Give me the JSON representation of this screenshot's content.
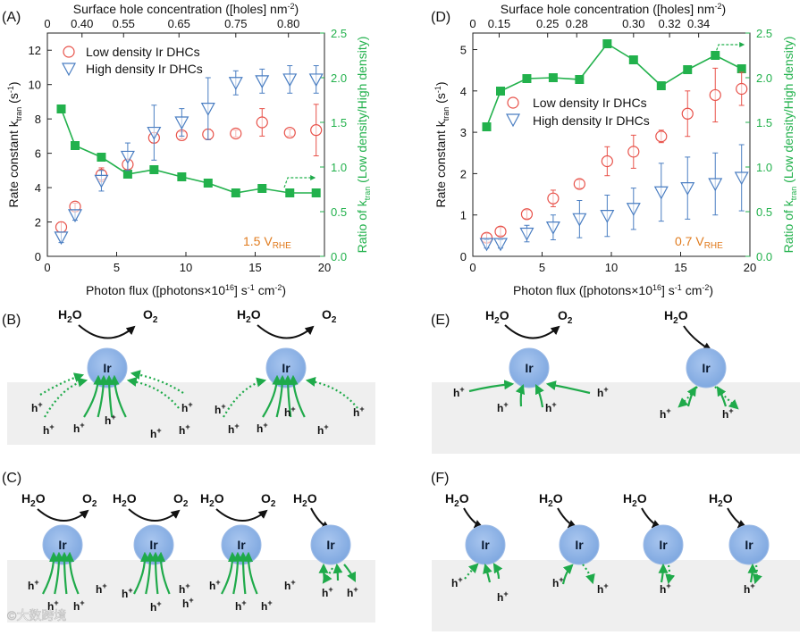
{
  "panels": {
    "A": {
      "letter": "(A)",
      "condition": "1.5 V",
      "condition_sub": "RHE"
    },
    "B": {
      "letter": "(B)"
    },
    "C": {
      "letter": "(C)"
    },
    "D": {
      "letter": "(D)",
      "condition": "0.7 V",
      "condition_sub": "RHE"
    },
    "E": {
      "letter": "(E)"
    },
    "F": {
      "letter": "(F)"
    }
  },
  "axes": {
    "x_title_pre": "Photon flux ([photons×10",
    "x_title_sup": "16",
    "x_title_mid": "] s",
    "x_title_sup2": "-1",
    "x_title_mid2": " cm",
    "x_title_sup3": "-2",
    "x_title_post": ")",
    "top_title_pre": "Surface hole concentration ([holes] nm",
    "top_title_sup": "-2",
    "top_title_post": ")",
    "y_title_pre": "Rate constant k",
    "y_title_sub": "tran",
    "y_title_post": " (s",
    "y_title_sup": "-1",
    "y_title_end": ")",
    "y2_title_pre": "Ratio of k",
    "y2_title_sub": "tran",
    "y2_title_post": " (Low density/High density)"
  },
  "legend": {
    "low": "Low density Ir DHCs",
    "high": "High density Ir DHCs"
  },
  "colors": {
    "low": "#e8524a",
    "high": "#4a7ec2",
    "ratio": "#22b14c",
    "cond": "#e07b1e",
    "ir": "#8fb4e8"
  },
  "chart_data": [
    {
      "id": "A",
      "type": "scatter",
      "xlim": [
        0,
        20
      ],
      "xticks": [
        0,
        5,
        10,
        15,
        20
      ],
      "ylim": [
        0,
        13
      ],
      "yticks": [
        0,
        2,
        4,
        6,
        8,
        10,
        12
      ],
      "y2lim": [
        0,
        2.5
      ],
      "y2ticks": [
        "0.0",
        "0.5",
        "1.0",
        "1.5",
        "2.0",
        "2.5"
      ],
      "top_ticks": [
        {
          "x": 0,
          "label": "0"
        },
        {
          "x": 2.5,
          "label": "0.40"
        },
        {
          "x": 5.5,
          "label": "0.55"
        },
        {
          "x": 9.5,
          "label": "0.65"
        },
        {
          "x": 13.6,
          "label": "0.75"
        },
        {
          "x": 17.4,
          "label": "0.80"
        }
      ],
      "series": [
        {
          "name": "Low density Ir DHCs",
          "x": [
            1,
            2,
            3.9,
            5.8,
            7.7,
            9.7,
            11.6,
            13.6,
            15.5,
            17.5,
            19.4
          ],
          "y": [
            1.7,
            2.9,
            4.75,
            5.35,
            6.9,
            7.05,
            7.1,
            7.15,
            7.8,
            7.2,
            7.35
          ],
          "err": [
            0.3,
            0.2,
            0.4,
            0.3,
            0.3,
            0.2,
            0.3,
            0.2,
            0.8,
            0.2,
            1.5
          ]
        },
        {
          "name": "High density Ir DHCs",
          "x": [
            1,
            2,
            3.9,
            5.8,
            7.7,
            9.7,
            11.6,
            13.6,
            15.5,
            17.5,
            19.4
          ],
          "y": [
            1.1,
            2.4,
            4.4,
            5.8,
            7.2,
            7.8,
            8.6,
            10.1,
            10.2,
            10.3,
            10.3
          ],
          "err": [
            0.3,
            0.3,
            0.6,
            0.8,
            1.6,
            0.8,
            1.8,
            0.7,
            0.7,
            0.8,
            0.8
          ]
        },
        {
          "name": "Ratio",
          "x": [
            1,
            2,
            3.9,
            5.8,
            7.7,
            9.7,
            11.6,
            13.6,
            15.5,
            17.5,
            19.4
          ],
          "y2": [
            1.65,
            1.24,
            1.11,
            0.92,
            0.97,
            0.89,
            0.82,
            0.71,
            0.76,
            0.71,
            0.71
          ]
        }
      ]
    },
    {
      "id": "D",
      "type": "scatter",
      "xlim": [
        0,
        20
      ],
      "xticks": [
        0,
        5,
        10,
        15,
        20
      ],
      "ylim": [
        0,
        5.4
      ],
      "yticks": [
        0,
        1,
        2,
        3,
        4,
        5
      ],
      "y2lim": [
        0,
        2.5
      ],
      "y2ticks": [
        "0.0",
        "0.5",
        "1.0",
        "1.5",
        "2.0",
        "2.5"
      ],
      "top_ticks": [
        {
          "x": 0,
          "label": "0"
        },
        {
          "x": 1.9,
          "label": "0.15"
        },
        {
          "x": 5.4,
          "label": "0.25"
        },
        {
          "x": 7.5,
          "label": "0.28"
        },
        {
          "x": 11.6,
          "label": "0.30"
        },
        {
          "x": 14.2,
          "label": "0.32"
        },
        {
          "x": 16.3,
          "label": "0.34"
        }
      ],
      "series": [
        {
          "name": "Low density Ir DHCs",
          "x": [
            1,
            2,
            3.9,
            5.8,
            7.7,
            9.7,
            11.6,
            13.6,
            15.5,
            17.5,
            19.4
          ],
          "y": [
            0.45,
            0.6,
            1.02,
            1.4,
            1.75,
            2.3,
            2.53,
            2.9,
            3.45,
            3.9,
            4.05
          ],
          "err": [
            0.1,
            0.1,
            0.1,
            0.2,
            0.1,
            0.35,
            0.4,
            0.15,
            0.55,
            0.65,
            0.4
          ]
        },
        {
          "name": "High density Ir DHCs",
          "x": [
            1,
            2,
            3.9,
            5.8,
            7.7,
            9.7,
            11.6,
            13.6,
            15.5,
            17.5,
            19.4
          ],
          "y": [
            0.3,
            0.3,
            0.55,
            0.7,
            0.9,
            0.98,
            1.15,
            1.55,
            1.65,
            1.75,
            1.9
          ],
          "err": [
            0.1,
            0.1,
            0.2,
            0.3,
            0.45,
            0.5,
            0.5,
            0.7,
            0.75,
            0.75,
            0.8
          ]
        },
        {
          "name": "Ratio",
          "x": [
            1,
            2,
            3.9,
            5.8,
            7.7,
            9.7,
            11.6,
            13.6,
            15.5,
            17.5,
            19.4
          ],
          "y2": [
            1.45,
            1.85,
            1.99,
            2.0,
            1.98,
            2.38,
            2.2,
            1.91,
            2.09,
            2.25,
            2.1
          ]
        }
      ]
    }
  ],
  "diagrams": {
    "water": "H",
    "water_sub": "2",
    "water_end": "O",
    "oxygen": "O",
    "oxygen_sub": "2",
    "ir": "Ir",
    "hole": "h",
    "hole_sup": "+"
  },
  "watermark": "©大数跨境"
}
